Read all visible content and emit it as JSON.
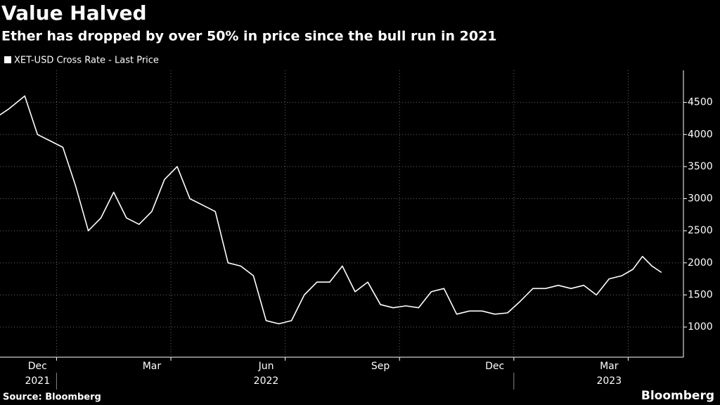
{
  "chart_data": {
    "type": "line",
    "title": "Value Halved",
    "subtitle": "Ether has dropped by over 50% in price since the bull run in 2021",
    "source": "Source: Bloomberg",
    "brand": "Bloomberg",
    "x": [
      "2021-11",
      "2021-11",
      "2021-12",
      "2021-12",
      "2021-12",
      "2022-01",
      "2022-01",
      "2022-01",
      "2022-02",
      "2022-02",
      "2022-02",
      "2022-03",
      "2022-03",
      "2022-03",
      "2022-04",
      "2022-04",
      "2022-04",
      "2022-05",
      "2022-05",
      "2022-05",
      "2022-06",
      "2022-06",
      "2022-06",
      "2022-07",
      "2022-07",
      "2022-07",
      "2022-08",
      "2022-08",
      "2022-08",
      "2022-09",
      "2022-09",
      "2022-09",
      "2022-10",
      "2022-10",
      "2022-10",
      "2022-11",
      "2022-11",
      "2022-11",
      "2022-12",
      "2022-12",
      "2022-12",
      "2023-01",
      "2023-01",
      "2023-01",
      "2023-02",
      "2023-02",
      "2023-02",
      "2023-03",
      "2023-03",
      "2023-03",
      "2023-04",
      "2023-04",
      "2023-04",
      "2023-04"
    ],
    "series": [
      {
        "name": "XET-USD Cross Rate - Last Price",
        "color": "#ffffff",
        "values": [
          4200,
          4400,
          4600,
          4000,
          3900,
          3800,
          3200,
          2500,
          2700,
          3100,
          2700,
          2600,
          2800,
          3300,
          3500,
          3000,
          2900,
          2800,
          2000,
          1950,
          1800,
          1100,
          1050,
          1100,
          1500,
          1700,
          1700,
          1950,
          1550,
          1700,
          1350,
          1300,
          1330,
          1300,
          1550,
          1600,
          1200,
          1250,
          1250,
          1200,
          1220,
          1400,
          1600,
          1600,
          1650,
          1600,
          1650,
          1500,
          1750,
          1800,
          1900,
          2100,
          1950,
          1850
        ]
      }
    ],
    "xlim": [
      "2021-11",
      "2023-05"
    ],
    "xticks": [
      {
        "value": "2021-12",
        "label": "Dec"
      },
      {
        "value": "2022-03",
        "label": "Mar"
      },
      {
        "value": "2022-06",
        "label": "Jun"
      },
      {
        "value": "2022-09",
        "label": "Sep"
      },
      {
        "value": "2022-12",
        "label": "Dec"
      },
      {
        "value": "2023-03",
        "label": "Mar"
      }
    ],
    "year_labels": [
      {
        "value": "2021-12",
        "label": "2021"
      },
      {
        "value": "2022-06",
        "label": "2022"
      },
      {
        "value": "2023-03",
        "label": "2023"
      }
    ],
    "ylim": [
      530,
      5000
    ],
    "yticks": [
      1000,
      1500,
      2000,
      2500,
      3000,
      3500,
      4000,
      4500
    ],
    "grid": true
  }
}
